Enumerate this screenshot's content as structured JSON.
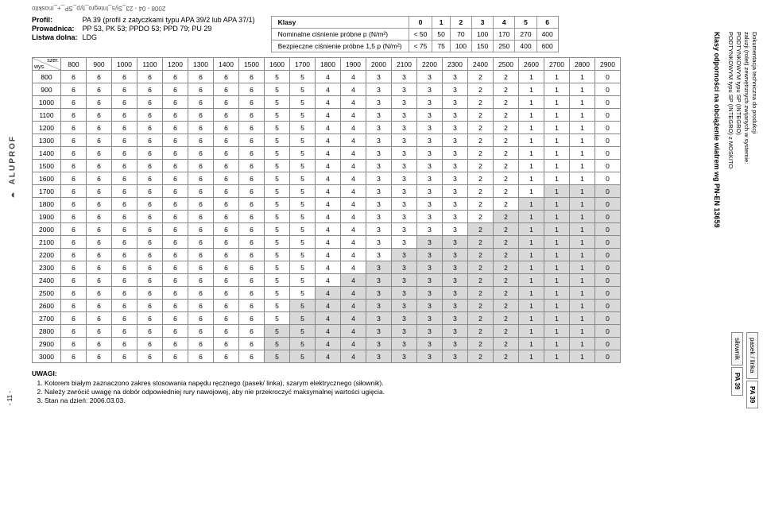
{
  "doc_header_rotated": "2008 - 04 - 23_Sys_Integro_typ_SP_+_moskito",
  "left_logo": "ALUPROF",
  "page_num": "- 11 -",
  "profile": {
    "labels": {
      "profil": "Profil:",
      "prow": "Prowadnica:",
      "listwa": "Listwa dolna:"
    },
    "profil": "PA 39 (profil z zatyczkami typu APA 39/2 lub APA 37/1)",
    "prow": "PP 53, PK 53; PPDO 53; PPD 79; PU 29",
    "listwa": "LDG"
  },
  "klasy": {
    "head": "Klasy",
    "classes": [
      "0",
      "1",
      "2",
      "3",
      "4",
      "5",
      "6"
    ],
    "row1_label": "Nominalne ciśnienie próbne p (N/m²)",
    "row1": [
      "< 50",
      "50",
      "70",
      "100",
      "170",
      "270",
      "400"
    ],
    "row2_label": "Bezpieczne ciśnienie próbne 1,5 p (N/m²)",
    "row2": [
      "< 75",
      "75",
      "100",
      "150",
      "250",
      "400",
      "600"
    ]
  },
  "main": {
    "corner_top": "szer.",
    "corner_bot": "wys.",
    "col_headers": [
      "800",
      "900",
      "1000",
      "1100",
      "1200",
      "1300",
      "1400",
      "1500",
      "1600",
      "1700",
      "1800",
      "1900",
      "2000",
      "2100",
      "2200",
      "2300",
      "2400",
      "2500",
      "2600",
      "2700",
      "2800",
      "2900"
    ],
    "row_headers": [
      "800",
      "900",
      "1000",
      "1100",
      "1200",
      "1300",
      "1400",
      "1500",
      "1600",
      "1700",
      "1800",
      "1900",
      "2000",
      "2100",
      "2200",
      "2300",
      "2400",
      "2500",
      "2600",
      "2700",
      "2800",
      "2900",
      "3000"
    ],
    "row_values": [
      "6",
      "6",
      "6",
      "6",
      "6",
      "6",
      "6",
      "6",
      "5",
      "5",
      "4",
      "4",
      "3",
      "3",
      "3",
      "3",
      "2",
      "2",
      "1",
      "1",
      "1",
      "0"
    ],
    "gray_start_per_row": [
      22,
      22,
      22,
      22,
      22,
      22,
      22,
      22,
      22,
      19,
      18,
      17,
      16,
      14,
      13,
      12,
      11,
      10,
      9,
      9,
      8,
      8,
      8
    ],
    "colors": {
      "white": "#ffffff",
      "gray": "#d9d9d9",
      "border": "#888888"
    }
  },
  "uwagi": {
    "title": "UWAGI:",
    "items": [
      "Kolorem białym zaznaczono zakres stosowania napędu ręcznego (pasek/ linka), szarym elektrycznego (siłownik).",
      "Należy zwrócić uwagę na dobór odpowiedniej rury nawojowej,  aby nie przekroczyć maksymalnej wartości ugięcia.",
      "Stan na dzień: 2006.03.03."
    ]
  },
  "right_vertical": {
    "main": "Klasy odporności na obciążenie wiatrem wg PN-EN 13659",
    "doc1": "Dokumentacja techniczna do produkcji",
    "doc2": "żaluzji (rolet) zewnętrznych zwijanych w systemie:",
    "doc3": "PODTYNKOWYM typu SP (INTEGRO)",
    "doc4": "PODTYNKOWYM typu SP (INTEGRO) z MOSKITO"
  },
  "right_tabs": {
    "col1": [
      "pasek / linka",
      "PA 39"
    ],
    "col2": [
      "siłownik",
      "PA 39"
    ]
  }
}
